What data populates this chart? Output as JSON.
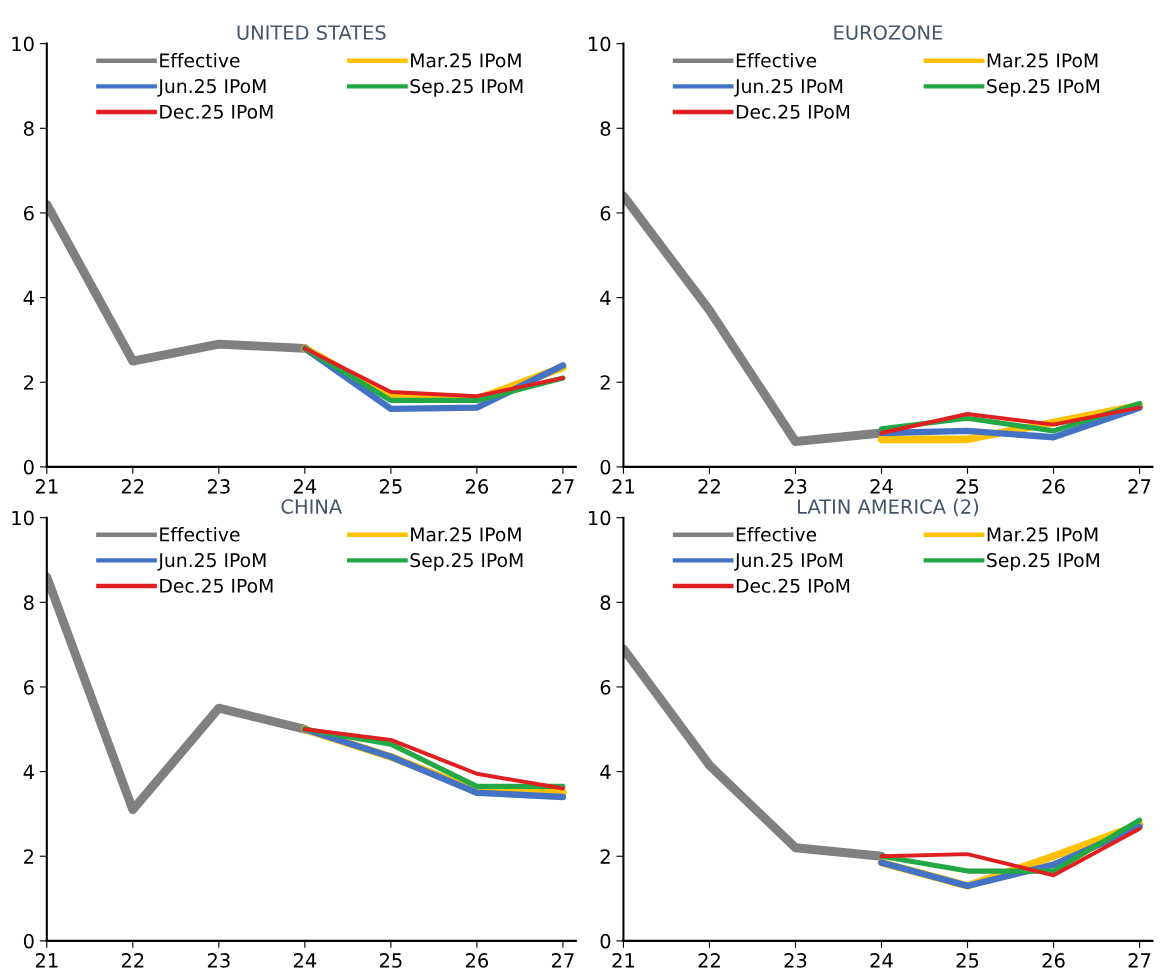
{
  "chart_data": [
    {
      "type": "line",
      "title": "UNITED STATES",
      "x": [
        21,
        22,
        23,
        24,
        25,
        26,
        27
      ],
      "xlim": [
        21,
        27.15
      ],
      "xticks": [
        21,
        22,
        23,
        24,
        25,
        26,
        27
      ],
      "ylim": [
        0,
        10
      ],
      "yticks": [
        0,
        2,
        4,
        6,
        8,
        10
      ],
      "grid": false,
      "legend": "top",
      "series": [
        {
          "name": "Effective",
          "color": "#808080",
          "values": [
            6.2,
            2.5,
            2.9,
            2.8,
            null,
            null,
            null
          ]
        },
        {
          "name": "Mar.25 IPoM",
          "color": "#ffc000",
          "values": [
            null,
            null,
            null,
            2.8,
            1.65,
            1.6,
            2.35
          ]
        },
        {
          "name": "Jun.25 IPoM",
          "color": "#4472c4",
          "values": [
            null,
            null,
            null,
            2.8,
            1.37,
            1.4,
            2.4
          ]
        },
        {
          "name": "Sep.25 IPoM",
          "color": "#22a845",
          "values": [
            null,
            null,
            null,
            2.8,
            1.57,
            1.57,
            2.1
          ]
        },
        {
          "name": "Dec.25 IPoM",
          "color": "#e02020",
          "values": [
            null,
            null,
            null,
            2.8,
            1.77,
            1.67,
            2.1
          ]
        }
      ]
    },
    {
      "type": "line",
      "title": "EUROZONE",
      "x": [
        21,
        22,
        23,
        24,
        25,
        26,
        27
      ],
      "xlim": [
        21,
        27.15
      ],
      "xticks": [
        21,
        22,
        23,
        24,
        25,
        26,
        27
      ],
      "ylim": [
        0,
        10
      ],
      "yticks": [
        0,
        2,
        4,
        6,
        8,
        10
      ],
      "grid": false,
      "legend": "top",
      "series": [
        {
          "name": "Effective",
          "color": "#808080",
          "values": [
            6.4,
            3.7,
            0.6,
            0.8,
            null,
            null,
            null
          ]
        },
        {
          "name": "Mar.25 IPoM",
          "color": "#ffc000",
          "values": [
            null,
            null,
            null,
            0.65,
            0.65,
            1.05,
            1.45
          ]
        },
        {
          "name": "Jun.25 IPoM",
          "color": "#4472c4",
          "values": [
            null,
            null,
            null,
            0.8,
            0.85,
            0.7,
            1.4
          ]
        },
        {
          "name": "Sep.25 IPoM",
          "color": "#22a845",
          "values": [
            null,
            null,
            null,
            0.9,
            1.15,
            0.85,
            1.5
          ]
        },
        {
          "name": "Dec.25 IPoM",
          "color": "#e02020",
          "values": [
            null,
            null,
            null,
            0.8,
            1.25,
            1.0,
            1.4
          ]
        }
      ]
    },
    {
      "type": "line",
      "title": "CHINA",
      "x": [
        21,
        22,
        23,
        24,
        25,
        26,
        27
      ],
      "xlim": [
        21,
        27.15
      ],
      "xticks": [
        21,
        22,
        23,
        24,
        25,
        26,
        27
      ],
      "ylim": [
        0,
        10
      ],
      "yticks": [
        0,
        2,
        4,
        6,
        8,
        10
      ],
      "grid": false,
      "legend": "top",
      "series": [
        {
          "name": "Effective",
          "color": "#808080",
          "values": [
            8.6,
            3.1,
            5.5,
            5.0,
            null,
            null,
            null
          ]
        },
        {
          "name": "Mar.25 IPoM",
          "color": "#ffc000",
          "values": [
            null,
            null,
            null,
            5.0,
            4.35,
            3.55,
            3.5
          ]
        },
        {
          "name": "Jun.25 IPoM",
          "color": "#4472c4",
          "values": [
            null,
            null,
            null,
            5.0,
            4.35,
            3.5,
            3.4
          ]
        },
        {
          "name": "Sep.25 IPoM",
          "color": "#22a845",
          "values": [
            null,
            null,
            null,
            5.0,
            4.65,
            3.65,
            3.65
          ]
        },
        {
          "name": "Dec.25 IPoM",
          "color": "#e02020",
          "values": [
            null,
            null,
            null,
            5.0,
            4.75,
            3.95,
            3.6
          ]
        }
      ]
    },
    {
      "type": "line",
      "title": "LATIN AMERICA (2)",
      "x": [
        21,
        22,
        23,
        24,
        25,
        26,
        27
      ],
      "xlim": [
        21,
        27.15
      ],
      "xticks": [
        21,
        22,
        23,
        24,
        25,
        26,
        27
      ],
      "ylim": [
        0,
        10
      ],
      "yticks": [
        0,
        2,
        4,
        6,
        8,
        10
      ],
      "grid": false,
      "legend": "top",
      "series": [
        {
          "name": "Effective",
          "color": "#808080",
          "values": [
            6.9,
            4.15,
            2.2,
            2.0,
            null,
            null,
            null
          ]
        },
        {
          "name": "Mar.25 IPoM",
          "color": "#ffc000",
          "values": [
            null,
            null,
            null,
            1.85,
            1.3,
            2.0,
            2.75
          ]
        },
        {
          "name": "Jun.25 IPoM",
          "color": "#4472c4",
          "values": [
            null,
            null,
            null,
            1.85,
            1.3,
            1.8,
            2.7
          ]
        },
        {
          "name": "Sep.25 IPoM",
          "color": "#22a845",
          "values": [
            null,
            null,
            null,
            2.0,
            1.65,
            1.65,
            2.85
          ]
        },
        {
          "name": "Dec.25 IPoM",
          "color": "#e02020",
          "values": [
            null,
            null,
            null,
            2.0,
            2.05,
            1.55,
            2.65
          ]
        }
      ]
    }
  ]
}
